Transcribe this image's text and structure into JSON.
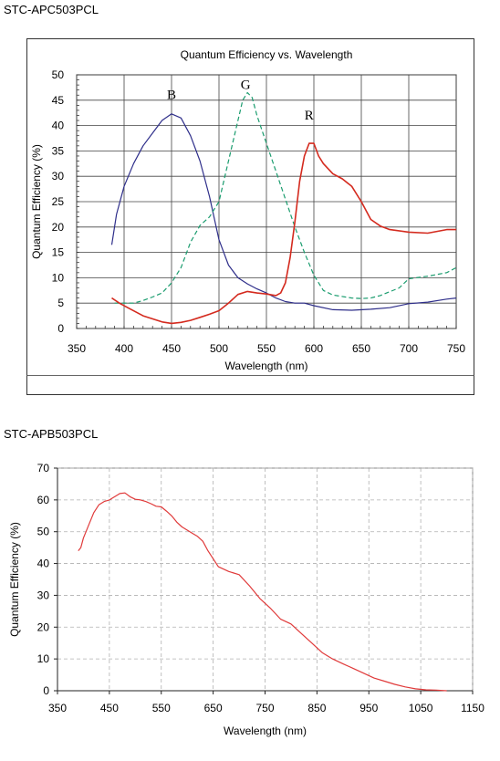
{
  "charts": {
    "top": {
      "model_label": "STC-APC503PCL",
      "line_colors": {
        "B": "#2e2e8a",
        "G": "#1a9c6e",
        "R": "#d42a1e"
      }
    },
    "bottom": {
      "model_label": "STC-APB503PCL",
      "line_color": "#e03a3a"
    }
  },
  "chart_data": [
    {
      "type": "line",
      "title": "Quantum Efficiency vs. Wavelength",
      "xlabel": "Wavelength (nm)",
      "ylabel": "Quantum Efficiency (%)",
      "xlim": [
        350,
        750
      ],
      "ylim": [
        0,
        50
      ],
      "xticks": [
        350,
        400,
        450,
        500,
        550,
        600,
        650,
        700,
        750
      ],
      "yticks": [
        0,
        5,
        10,
        15,
        20,
        25,
        30,
        35,
        40,
        45,
        50
      ],
      "grid": true,
      "series": [
        {
          "name": "B",
          "style": "solid",
          "x": [
            387,
            392,
            400,
            410,
            420,
            430,
            440,
            450,
            460,
            470,
            480,
            490,
            500,
            510,
            520,
            530,
            540,
            550,
            560,
            570,
            580,
            590,
            600,
            620,
            640,
            660,
            680,
            700,
            720,
            740,
            750
          ],
          "y": [
            16.5,
            22.5,
            28,
            32.5,
            36,
            38.5,
            41,
            42.3,
            41.5,
            38,
            33,
            26,
            17.5,
            12.5,
            10,
            8.8,
            7.8,
            7,
            6,
            5.3,
            5,
            5,
            4.5,
            3.7,
            3.6,
            3.8,
            4.1,
            4.9,
            5.2,
            5.8,
            6
          ]
        },
        {
          "name": "G",
          "style": "dashed",
          "x": [
            390,
            410,
            420,
            430,
            440,
            450,
            460,
            470,
            480,
            490,
            500,
            510,
            520,
            525,
            530,
            535,
            540,
            550,
            560,
            570,
            580,
            590,
            600,
            610,
            620,
            640,
            650,
            660,
            670,
            690,
            700,
            720,
            740,
            750
          ],
          "y": [
            5,
            5,
            5.5,
            6.2,
            7,
            9,
            12,
            17,
            20.3,
            22,
            25,
            33,
            41,
            45,
            46.5,
            45.5,
            42,
            36.5,
            31,
            25.5,
            20,
            15,
            10.5,
            7.5,
            6.6,
            6,
            5.9,
            6,
            6.5,
            8,
            9.8,
            10.3,
            11,
            12
          ]
        },
        {
          "name": "R",
          "style": "solid",
          "x": [
            387,
            395,
            405,
            420,
            440,
            450,
            460,
            470,
            480,
            490,
            500,
            510,
            520,
            530,
            540,
            550,
            560,
            565,
            570,
            575,
            580,
            585,
            590,
            595,
            600,
            605,
            610,
            620,
            630,
            640,
            650,
            660,
            670,
            680,
            700,
            720,
            740,
            750
          ],
          "y": [
            6,
            5,
            4,
            2.5,
            1.3,
            1,
            1.2,
            1.6,
            2.2,
            2.8,
            3.5,
            5,
            6.7,
            7.3,
            7,
            6.8,
            6.5,
            7,
            9,
            14,
            21,
            29,
            34,
            36.5,
            36.5,
            34,
            32.5,
            30.5,
            29.5,
            28,
            25,
            21.5,
            20.2,
            19.5,
            19,
            18.8,
            19.5,
            19.5
          ]
        }
      ]
    },
    {
      "type": "line",
      "title": "",
      "xlabel": "Wavelength (nm)",
      "ylabel": "Quantum Efficiency (%)",
      "xlim": [
        350,
        1150
      ],
      "ylim": [
        0,
        70
      ],
      "xticks": [
        350,
        450,
        550,
        650,
        750,
        850,
        950,
        1050,
        1150
      ],
      "yticks": [
        0,
        10,
        20,
        30,
        40,
        50,
        60,
        70
      ],
      "grid": true,
      "series": [
        {
          "x": [
            390,
            395,
            400,
            410,
            420,
            430,
            440,
            450,
            460,
            470,
            480,
            490,
            500,
            510,
            520,
            530,
            540,
            550,
            560,
            570,
            580,
            590,
            600,
            610,
            620,
            630,
            640,
            650,
            660,
            680,
            700,
            720,
            740,
            760,
            780,
            800,
            820,
            840,
            860,
            880,
            900,
            920,
            940,
            960,
            980,
            1000,
            1020,
            1040,
            1060,
            1080,
            1100
          ],
          "y": [
            44,
            45,
            48,
            52,
            56,
            58.5,
            59.5,
            60,
            61,
            62,
            62.2,
            61,
            60.2,
            60,
            59.5,
            58.8,
            58,
            57.8,
            56.5,
            55,
            53,
            51.5,
            50.5,
            49.5,
            48.5,
            47,
            44,
            41.5,
            39,
            37.5,
            36.5,
            33,
            29,
            26,
            22.5,
            21,
            18,
            15,
            12,
            10,
            8.5,
            7,
            5.5,
            4,
            3,
            2,
            1.2,
            0.6,
            0.3,
            0.2,
            0
          ]
        }
      ]
    }
  ]
}
